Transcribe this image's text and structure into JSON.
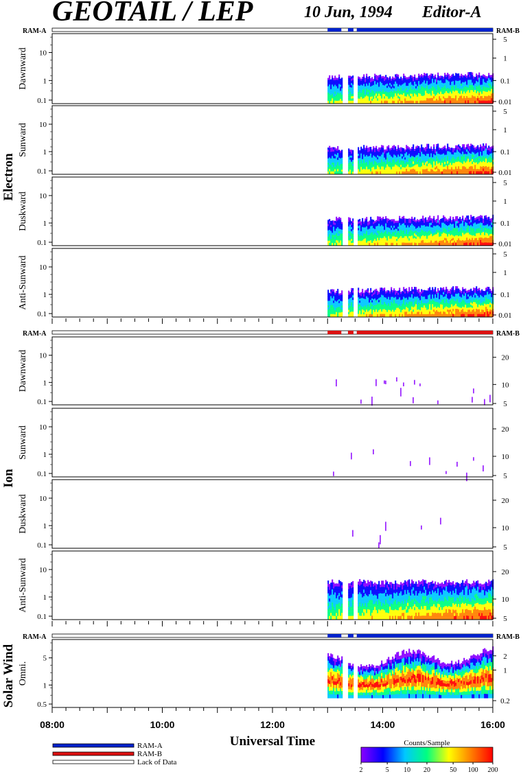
{
  "header": {
    "title": "GEOTAIL / LEP",
    "date": "10 Jun, 1994",
    "editor": "Editor-A"
  },
  "groups": [
    {
      "label": "Electron",
      "ram_left": "RAM-A",
      "ram_right": "RAM-B",
      "ram_color": "#0022cc",
      "panels": [
        {
          "label": "Dawnward",
          "yticks": [
            "10",
            "1",
            "0.1"
          ],
          "rticks": [
            "5",
            "1",
            "0.1",
            "0.01"
          ]
        },
        {
          "label": "Sunward",
          "yticks": [
            "10",
            "1",
            "0.1"
          ],
          "rticks": [
            "5",
            "1",
            "0.1",
            "0.01"
          ]
        },
        {
          "label": "Duskward",
          "yticks": [
            "10",
            "1",
            "0.1"
          ],
          "rticks": [
            "5",
            "1",
            "0.1",
            "0.01"
          ]
        },
        {
          "label": "Anti-Sunward",
          "yticks": [
            "10",
            "1",
            "0.1"
          ],
          "rticks": [
            "5",
            "1",
            "0.1",
            "0.01"
          ]
        }
      ]
    },
    {
      "label": "Ion",
      "ram_left": "RAM-A",
      "ram_right": "RAM-B",
      "ram_color": "#dd1111",
      "panels": [
        {
          "label": "Dawnward",
          "yticks": [
            "10",
            "1",
            "0.1"
          ],
          "rticks": [
            "20",
            "10",
            "5"
          ]
        },
        {
          "label": "Sunward",
          "yticks": [
            "10",
            "1",
            "0.1"
          ],
          "rticks": [
            "20",
            "10",
            "5"
          ]
        },
        {
          "label": "Duskward",
          "yticks": [
            "10",
            "1",
            "0.1"
          ],
          "rticks": [
            "20",
            "10",
            "5"
          ]
        },
        {
          "label": "Anti-Sunward",
          "yticks": [
            "10",
            "1",
            "0.1"
          ],
          "rticks": [
            "20",
            "10",
            "5"
          ]
        }
      ]
    },
    {
      "label": "Solar Wind",
      "ram_left": "RAM-A",
      "ram_right": "RAM-B",
      "ram_color": "#0022cc",
      "panels": [
        {
          "label": "Omni.",
          "yticks": [
            "5",
            "1",
            "0.5"
          ],
          "rticks": [
            "2",
            "1",
            "0.2"
          ]
        }
      ]
    }
  ],
  "x_axis": {
    "label": "Universal Time",
    "ticks": [
      "08:00",
      "10:00",
      "12:00",
      "14:00",
      "16:00"
    ]
  },
  "legend": {
    "items": [
      {
        "label": "RAM-A",
        "color": "#0022cc"
      },
      {
        "label": "RAM-B",
        "color": "#dd1111"
      },
      {
        "label": "Lack of Data",
        "color": "#ffffff"
      }
    ]
  },
  "colorbar": {
    "title": "Counts/Sample",
    "ticks": [
      "2",
      "5",
      "10",
      "20",
      "50",
      "100",
      "200"
    ]
  },
  "chart_data": {
    "type": "heatmap",
    "x_range": [
      "08:00",
      "16:00"
    ],
    "data_start": "13:00",
    "data_gaps": [
      "13:15-13:22",
      "13:28-13:32"
    ],
    "colorscale": [
      "#8a00ff",
      "#0000ff",
      "#00c8ff",
      "#00ff80",
      "#ffff00",
      "#ff8000",
      "#ff0000"
    ],
    "color_range": [
      2,
      200
    ]
  }
}
